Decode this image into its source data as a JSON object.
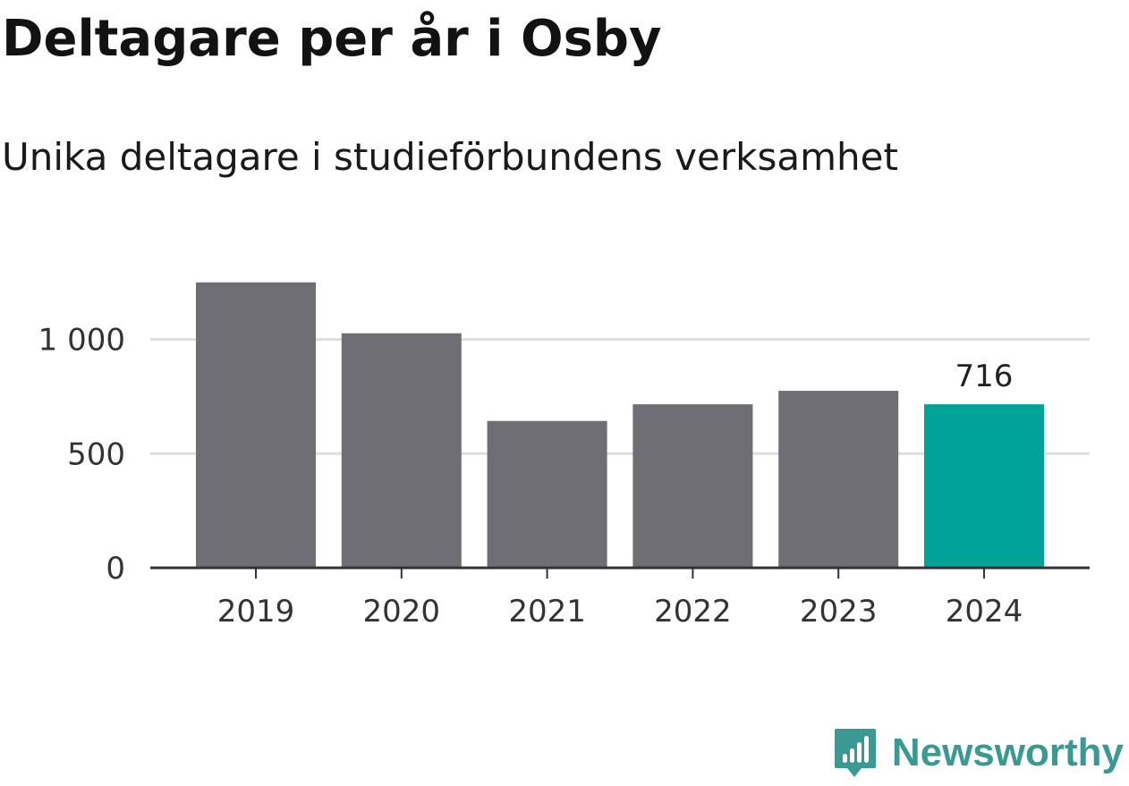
{
  "header": {
    "title": "Deltagare per år i Osby",
    "subtitle": "Unika deltagare i studieförbundens verksamhet"
  },
  "chart_data": {
    "type": "bar",
    "categories": [
      "2019",
      "2020",
      "2021",
      "2022",
      "2023",
      "2024"
    ],
    "values": [
      1250,
      1027,
      643,
      716,
      775,
      716
    ],
    "ylim": [
      0,
      1300
    ],
    "yticks": [
      0,
      500,
      1000
    ],
    "ytick_labels": [
      "0",
      "500",
      "1 000"
    ],
    "grid": true,
    "highlight_index": 5,
    "data_labels": [
      {
        "index": 5,
        "text": "716"
      }
    ],
    "colors": {
      "bar": "#6f6e74",
      "highlight": "#00a398",
      "grid": "#dddddd",
      "axis": "#333333"
    }
  },
  "brand": {
    "name": "Newsworthy",
    "icon": "newsworthy-logo-icon",
    "color": "#3a9a93"
  }
}
